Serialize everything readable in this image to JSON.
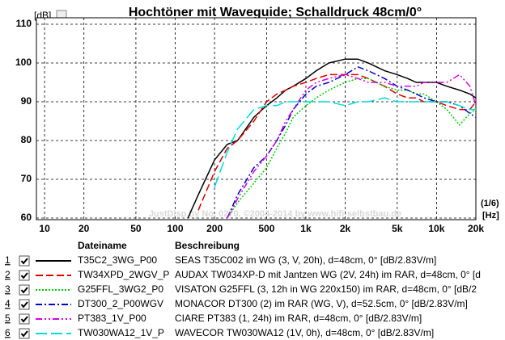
{
  "chart_data": {
    "type": "line",
    "title": "Hochtöner mit Waveguide; Schalldruck 48cm/0°",
    "y_unit": "[dB]",
    "x_unit": "[Hz]",
    "smoothing": "(1/6)",
    "watermark": "JustDisp by No. 0270, ©2004-2014 by www.hifi-selbstbau.de",
    "legend_headers": [
      "Dateiname",
      "Beschreibung"
    ],
    "x_log": true,
    "grid": true,
    "xlim": [
      8.66,
      20000
    ],
    "ylim": [
      60,
      110
    ],
    "yticks": [
      60,
      70,
      80,
      90,
      100,
      110
    ],
    "xticks": [
      10,
      20,
      50,
      100,
      200,
      500,
      {
        "value": 1000,
        "label": "1k"
      },
      {
        "value": 2000,
        "label": "2k"
      },
      {
        "value": 5000,
        "label": "5k"
      },
      {
        "value": 10000,
        "label": "10k"
      },
      {
        "value": 20000,
        "label": "20k"
      }
    ],
    "x": [
      125,
      150,
      200,
      250,
      300,
      400,
      500,
      600,
      700,
      800,
      1000,
      1200,
      1500,
      2000,
      2500,
      3000,
      4000,
      5000,
      6000,
      7000,
      8000,
      10000,
      12000,
      15000,
      18000,
      20000
    ],
    "series": [
      {
        "number": "1",
        "name": "T35C2_3WG_P00",
        "description": "SEAS T35C002 im WG (3, V, 20h), d=48cm, 0° [dB/2.83V/m]",
        "color": "#000000",
        "style": "solid",
        "values": [
          60,
          66,
          75,
          79,
          80,
          86,
          89,
          91,
          93,
          94,
          96,
          98,
          100,
          101,
          101,
          100,
          98,
          97,
          96,
          95,
          95,
          95,
          94,
          93,
          92,
          91
        ]
      },
      {
        "number": "2",
        "name": "TW34XPD_2WGV_P",
        "description": "AUDAX TW034XP-D mit Jantzen WG (2V, 24h) im RAR, d=48cm, 0° [d",
        "color": "#e00000",
        "style": "dashed",
        "values": [
          null,
          62,
          72,
          78,
          80,
          85,
          90,
          92,
          93,
          94,
          95,
          96,
          97,
          97,
          97,
          96,
          94,
          92,
          91,
          91,
          90,
          90,
          89,
          88,
          88,
          90
        ]
      },
      {
        "number": "3",
        "name": "G25FFL_3WG2_P0",
        "description": "VISATON G25FFL (3, 12h in WG 220x150) im RAR, d=48cm, 0° [dB/2",
        "color": "#00cc00",
        "style": "dotted",
        "values": [
          null,
          null,
          null,
          60,
          64,
          69,
          73,
          78,
          82,
          86,
          89,
          91,
          93,
          95,
          96,
          96,
          94,
          93,
          93,
          92,
          92,
          90,
          88,
          84,
          87,
          88
        ]
      },
      {
        "number": "4",
        "name": "DT300_2_P00WGV",
        "description": "MONACOR DT300 (2) im RAR (WG, V), d=52.5cm, 0° [dB/2.83V/m]",
        "color": "#0000cc",
        "style": "dashdot",
        "values": [
          null,
          null,
          null,
          60,
          66,
          73,
          76,
          80,
          84,
          88,
          92,
          94,
          95,
          97,
          99,
          98,
          96,
          94,
          93,
          92,
          91,
          90,
          90,
          89,
          87,
          86
        ]
      },
      {
        "number": "5",
        "name": "PT383_1V_P00",
        "description": "CIARE PT383 (1, 24h) im RAR, d=48cm, 0° [dB/2.83V/m]",
        "color": "#dd00dd",
        "style": "dashdotdot",
        "values": [
          null,
          null,
          null,
          60,
          65,
          72,
          76,
          80,
          85,
          88,
          93,
          95,
          96,
          97,
          96,
          95,
          95,
          94,
          94,
          94,
          95,
          95,
          95,
          97,
          94,
          89
        ]
      },
      {
        "number": "6",
        "name": "TW030WA12_1V_P",
        "description": "WAVECOR TW030WA12 (1V, 0h), d=48cm, 0° [dB/2.83V/m]",
        "color": "#00dddd",
        "style": "longdash",
        "values": [
          null,
          null,
          68,
          77,
          83,
          88,
          89,
          89,
          90,
          90,
          90,
          90,
          90,
          89,
          90,
          90,
          91,
          90,
          90,
          90,
          90,
          90,
          90,
          89,
          88,
          88
        ]
      }
    ]
  }
}
